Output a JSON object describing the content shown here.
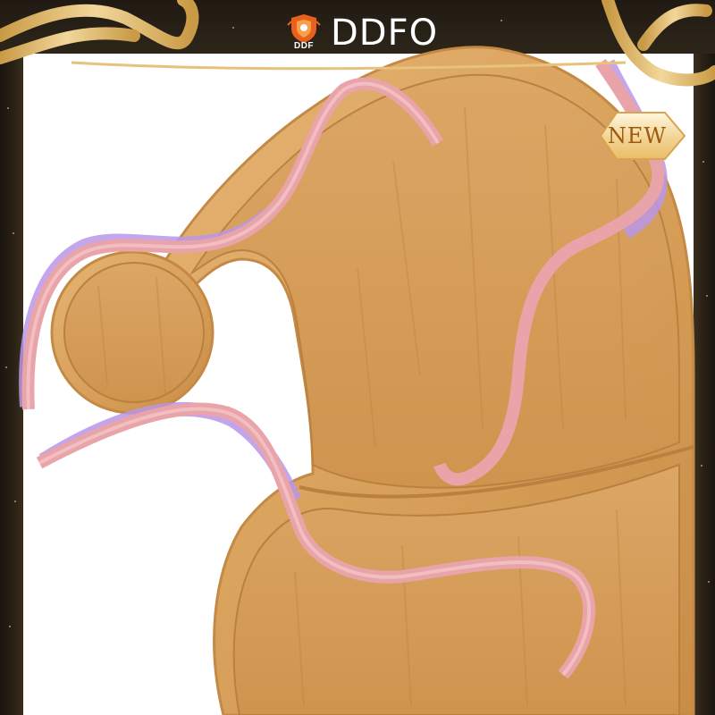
{
  "brand": {
    "name": "DDFO",
    "logo_text": "DDF"
  },
  "badge": {
    "label": "NEW"
  },
  "colors": {
    "wood": "#d9a25c",
    "wood_dark": "#b97d3c",
    "ribbon": "#e8a4a8",
    "ribbon_shadow": "#b996e8",
    "gold": "#e7c27a",
    "frame": "#241d14",
    "logo_orange": "#e8611c"
  },
  "image": {
    "subject": "wood-tray-icon"
  }
}
